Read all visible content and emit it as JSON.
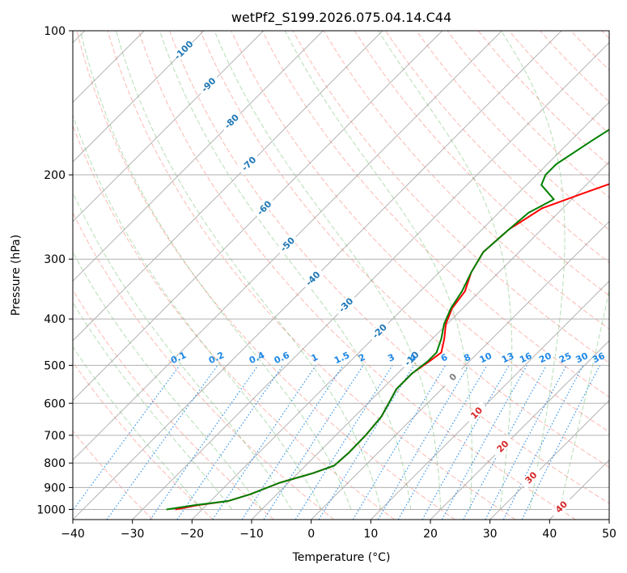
{
  "chart_data": {
    "type": "line",
    "subtype": "skew-t log-p",
    "title": "wetPf2_S199.2026.075.04.14.C44",
    "xlabel": "Temperature (°C)",
    "ylabel": "Pressure (hPa)",
    "xlim": [
      -40,
      50
    ],
    "ylim": [
      1050,
      100
    ],
    "y_scale": "log",
    "x_ticks": [
      -40,
      -30,
      -20,
      -10,
      0,
      10,
      20,
      30,
      40,
      50
    ],
    "x_tick_labels": [
      "−40",
      "−30",
      "−20",
      "−10",
      "0",
      "10",
      "20",
      "30",
      "40",
      "50"
    ],
    "y_ticks": [
      100,
      200,
      300,
      400,
      500,
      600,
      700,
      800,
      900,
      1000
    ],
    "y_tick_labels": [
      "100",
      "200",
      "300",
      "400",
      "500",
      "600",
      "700",
      "800",
      "900",
      "1000"
    ],
    "grid": true,
    "colors": {
      "temperature": "#ff0000",
      "dewpoint": "#008000",
      "dry_adiabat": "#fa8072",
      "moist_adiabat": "#2ca02c",
      "mixing_ratio": "#1e88e5",
      "isotherm": "#808080",
      "isotherm_label_cold": "#1f77b4",
      "isotherm_label_warm": "#d62728",
      "isotherm_label_zero": "#808080",
      "isobar": "#b0b0b0"
    },
    "series": [
      {
        "id": "temperature",
        "points": [
          {
            "p": 1000,
            "t": -24.5
          },
          {
            "p": 980,
            "t": -21.5
          },
          {
            "p": 960,
            "t": -17.0
          },
          {
            "p": 930,
            "t": -14.5
          },
          {
            "p": 880,
            "t": -11.5
          },
          {
            "p": 840,
            "t": -7.5
          },
          {
            "p": 810,
            "t": -5.2
          },
          {
            "p": 760,
            "t": -4.9
          },
          {
            "p": 700,
            "t": -5.0
          },
          {
            "p": 640,
            "t": -5.5
          },
          {
            "p": 600,
            "t": -6.5
          },
          {
            "p": 560,
            "t": -7.6
          },
          {
            "p": 520,
            "t": -7.6
          },
          {
            "p": 490,
            "t": -6.7
          },
          {
            "p": 470,
            "t": -6.2
          },
          {
            "p": 440,
            "t": -8.0
          },
          {
            "p": 410,
            "t": -10.2
          },
          {
            "p": 380,
            "t": -11.8
          },
          {
            "p": 350,
            "t": -12.5
          },
          {
            "p": 320,
            "t": -14.6
          },
          {
            "p": 290,
            "t": -16.0
          },
          {
            "p": 260,
            "t": -15.5
          },
          {
            "p": 235,
            "t": -13.5
          },
          {
            "p": 220,
            "t": -9.5
          },
          {
            "p": 205,
            "t": -5.0
          },
          {
            "p": 190,
            "t": -3.0
          },
          {
            "p": 170,
            "t": -0.5
          },
          {
            "p": 150,
            "t": 4.5
          },
          {
            "p": 130,
            "t": 9.5
          },
          {
            "p": 115,
            "t": 14.5
          },
          {
            "p": 100,
            "t": 20.5
          }
        ]
      },
      {
        "id": "dewpoint",
        "points": [
          {
            "p": 1000,
            "t": -26.0
          },
          {
            "p": 980,
            "t": -22.0
          },
          {
            "p": 960,
            "t": -17.0
          },
          {
            "p": 930,
            "t": -14.5
          },
          {
            "p": 880,
            "t": -11.5
          },
          {
            "p": 840,
            "t": -7.5
          },
          {
            "p": 810,
            "t": -5.2
          },
          {
            "p": 760,
            "t": -4.9
          },
          {
            "p": 700,
            "t": -5.0
          },
          {
            "p": 640,
            "t": -5.5
          },
          {
            "p": 600,
            "t": -6.5
          },
          {
            "p": 560,
            "t": -7.6
          },
          {
            "p": 520,
            "t": -7.6
          },
          {
            "p": 490,
            "t": -7.0
          },
          {
            "p": 470,
            "t": -7.0
          },
          {
            "p": 440,
            "t": -8.5
          },
          {
            "p": 410,
            "t": -10.5
          },
          {
            "p": 380,
            "t": -12.0
          },
          {
            "p": 350,
            "t": -13.0
          },
          {
            "p": 320,
            "t": -14.6
          },
          {
            "p": 290,
            "t": -16.0
          },
          {
            "p": 260,
            "t": -15.5
          },
          {
            "p": 240,
            "t": -15.0
          },
          {
            "p": 225,
            "t": -13.0
          },
          {
            "p": 210,
            "t": -17.5
          },
          {
            "p": 200,
            "t": -18.5
          },
          {
            "p": 190,
            "t": -18.5
          },
          {
            "p": 170,
            "t": -16.5
          },
          {
            "p": 150,
            "t": -14.0
          },
          {
            "p": 130,
            "t": -11.5
          },
          {
            "p": 115,
            "t": -8.0
          },
          {
            "p": 100,
            "t": -3.5
          }
        ]
      }
    ],
    "isotherm_labels": [
      {
        "text": "-100",
        "t": -100,
        "p": 110
      },
      {
        "text": "-90",
        "t": -90,
        "p": 130
      },
      {
        "text": "-80",
        "t": -80,
        "p": 155
      },
      {
        "text": "-70",
        "t": -70,
        "p": 190
      },
      {
        "text": "-60",
        "t": -60,
        "p": 235
      },
      {
        "text": "-50",
        "t": -50,
        "p": 280
      },
      {
        "text": "-40",
        "t": -40,
        "p": 330
      },
      {
        "text": "-30",
        "t": -30,
        "p": 375
      },
      {
        "text": "-20",
        "t": -20,
        "p": 425
      },
      {
        "text": "-10",
        "t": -10,
        "p": 485
      },
      {
        "text": "0",
        "t": 0,
        "p": 530
      },
      {
        "text": "10",
        "t": 10,
        "p": 630
      },
      {
        "text": "20",
        "t": 20,
        "p": 740
      },
      {
        "text": "30",
        "t": 30,
        "p": 860
      },
      {
        "text": "40",
        "t": 40,
        "p": 990
      }
    ],
    "mixing_ratio_labels": [
      "0.1",
      "0.2",
      "0.4",
      "0.6",
      "1",
      "1.5",
      "2",
      "3",
      "4",
      "6",
      "8",
      "10",
      "13",
      "16",
      "20",
      "25",
      "30",
      "36"
    ]
  }
}
